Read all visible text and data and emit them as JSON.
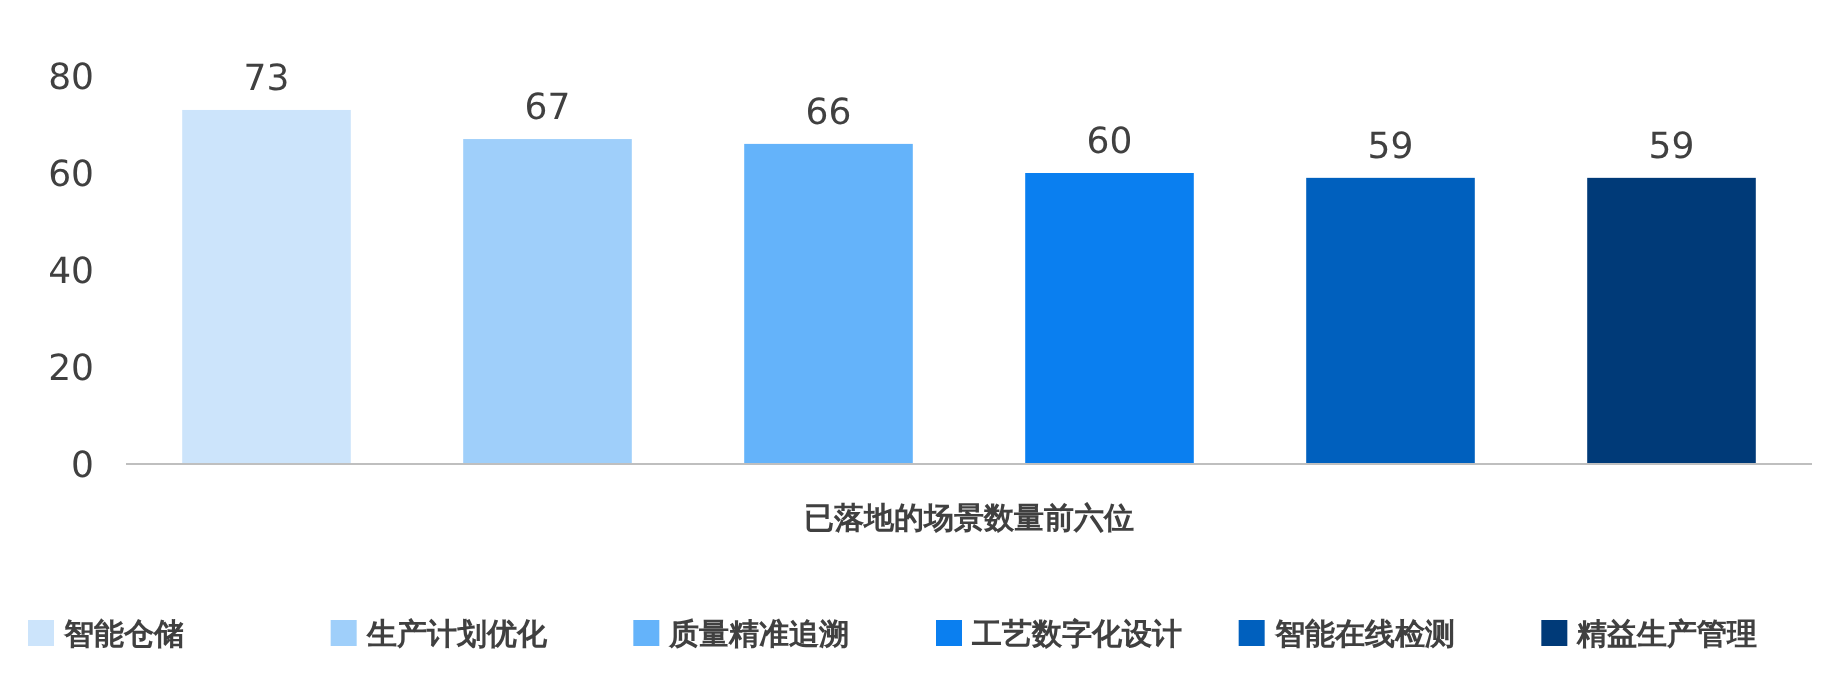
{
  "chart_data": {
    "type": "bar",
    "xlabel": "已落地的场景数量前六位",
    "categories": [
      null
    ],
    "series": [
      {
        "name": "智能仓储",
        "color": "#cce4fb",
        "values": [
          73
        ]
      },
      {
        "name": "生产计划优化",
        "color": "#9fcffa",
        "values": [
          67
        ]
      },
      {
        "name": "质量精准追溯",
        "color": "#64b3fa",
        "values": [
          66
        ]
      },
      {
        "name": "工艺数字化设计",
        "color": "#0a7ff0",
        "values": [
          60
        ]
      },
      {
        "name": "智能在线检测",
        "color": "#0060be",
        "values": [
          59
        ]
      },
      {
        "name": "精益生产管理",
        "color": "#003a78",
        "values": [
          59
        ]
      }
    ],
    "ylim": [
      0,
      80
    ],
    "yticks": [
      0,
      20,
      40,
      60,
      80
    ],
    "data_labels": true,
    "grid": false,
    "legend": "bottom"
  }
}
